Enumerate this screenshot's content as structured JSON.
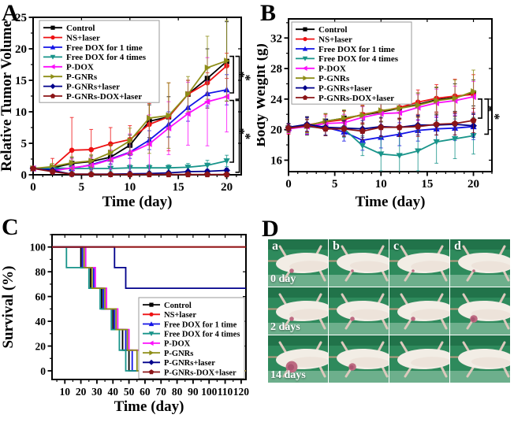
{
  "panels": {
    "a": {
      "letter": "A"
    },
    "b": {
      "letter": "B"
    },
    "c": {
      "letter": "C"
    },
    "d": {
      "letter": "D"
    }
  },
  "chart_data": [
    {
      "panel": "A",
      "type": "line",
      "xlabel": "Time (day)",
      "ylabel": "Relative Tumor Volume",
      "x": [
        0,
        2,
        4,
        6,
        8,
        10,
        12,
        14,
        16,
        18,
        20
      ],
      "xlim": [
        0,
        21.5
      ],
      "ylim": [
        0,
        25
      ],
      "xticks": [
        0,
        5,
        10,
        15,
        20
      ],
      "yticks": [
        0,
        5,
        10,
        15,
        20,
        25
      ],
      "xminor": 1,
      "yminor": 2.5,
      "star": "*",
      "series": [
        {
          "name": "Control",
          "color": "#000000",
          "marker": "square",
          "y": [
            1.0,
            1.1,
            1.8,
            2.1,
            2.8,
            4.7,
            8.5,
            9.2,
            12.8,
            15.3,
            18.0
          ],
          "err": [
            0.1,
            0.4,
            0.9,
            0.9,
            1.1,
            1.6,
            2.6,
            3.2,
            2.2,
            4.7,
            6.3
          ]
        },
        {
          "name": "NS+laser",
          "color": "#ee1113",
          "marker": "circle",
          "y": [
            1.0,
            1.2,
            3.9,
            4.0,
            4.9,
            5.6,
            8.0,
            9.2,
            12.8,
            14.6,
            17.3
          ],
          "err": [
            0.15,
            1.4,
            5.2,
            3.2,
            2.6,
            2.2,
            3.3,
            5.4,
            2.2,
            1.6,
            2.0
          ]
        },
        {
          "name": "Free DOX for 1 time",
          "color": "#1414e6",
          "marker": "triangle-up",
          "y": [
            1.0,
            0.9,
            1.0,
            1.6,
            2.5,
            3.6,
            5.5,
            8.0,
            10.7,
            12.9,
            13.5
          ],
          "err": [
            0.1,
            0.3,
            0.5,
            0.6,
            0.8,
            1.0,
            1.5,
            2.0,
            2.2,
            2.0,
            2.4
          ]
        },
        {
          "name": "Free DOX for 4 times",
          "color": "#18948a",
          "marker": "triangle-down",
          "y": [
            1.0,
            1.1,
            1.0,
            1.0,
            1.0,
            1.1,
            1.1,
            1.1,
            1.2,
            1.5,
            2.2
          ],
          "err": [
            0.1,
            0.3,
            0.4,
            0.4,
            0.4,
            0.5,
            0.5,
            0.5,
            0.6,
            0.8,
            0.9
          ]
        },
        {
          "name": "P-DOX",
          "color": "#fb0ffb",
          "marker": "triangle-left",
          "y": [
            1.0,
            0.6,
            1.1,
            1.5,
            2.4,
            3.5,
            4.9,
            7.4,
            9.7,
            11.6,
            12.4
          ],
          "err": [
            0.1,
            0.3,
            1.4,
            1.2,
            1.5,
            3.0,
            4.6,
            4.2,
            5.0,
            7.0,
            5.6
          ]
        },
        {
          "name": "P-GNRs",
          "color": "#8e8e17",
          "marker": "triangle-right",
          "y": [
            1.0,
            1.3,
            1.9,
            2.2,
            3.5,
            5.4,
            9.0,
            9.4,
            12.8,
            17.0,
            18.1
          ],
          "err": [
            0.15,
            0.5,
            1.0,
            1.0,
            1.3,
            2.0,
            5.6,
            5.2,
            2.8,
            5.0,
            6.4
          ]
        },
        {
          "name": "P-GNRs+laser",
          "color": "#00008b",
          "marker": "diamond",
          "y": [
            1.0,
            0.7,
            0.1,
            0.1,
            0.1,
            0.15,
            0.2,
            0.3,
            0.5,
            0.55,
            0.7
          ],
          "err": [
            0.1,
            0.3,
            0.1,
            0.1,
            0.1,
            0.1,
            0.15,
            0.2,
            0.25,
            0.3,
            0.35
          ]
        },
        {
          "name": "P-GNRs-DOX+laser",
          "color": "#8b1417",
          "marker": "pentagon",
          "y": [
            1.0,
            0.5,
            0.1,
            0.08,
            0.06,
            0.05,
            0.05,
            0.05,
            0.05,
            0.05,
            0.05
          ],
          "err": [
            0.1,
            0.25,
            0.08,
            0.06,
            0.05,
            0.05,
            0.05,
            0.05,
            0.05,
            0.05,
            0.05
          ]
        }
      ],
      "brackets": [
        {
          "x": 20.7,
          "y1": 18.8,
          "y2": 13.0
        },
        {
          "x": 21.3,
          "y1": 18.8,
          "y2": 12.0
        },
        {
          "x": 20.7,
          "y1": 11.8,
          "y2": 2.0
        },
        {
          "x": 21.3,
          "y1": 11.8,
          "y2": 0.4
        }
      ]
    },
    {
      "panel": "B",
      "type": "line",
      "xlabel": "Time (day)",
      "ylabel": "Body Weight (g)",
      "x": [
        0,
        2,
        4,
        6,
        8,
        10,
        12,
        14,
        16,
        18,
        20
      ],
      "xlim": [
        0,
        22
      ],
      "ylim": [
        14.5,
        34.5
      ],
      "xticks": [
        0,
        5,
        10,
        15,
        20
      ],
      "yticks": [
        16,
        20,
        24,
        28,
        32
      ],
      "xminor": 1,
      "yminor": 2,
      "star": "*",
      "series": [
        {
          "name": "Control",
          "color": "#000000",
          "marker": "square",
          "y": [
            20.2,
            20.5,
            21.1,
            21.5,
            21.9,
            22.3,
            22.8,
            23.3,
            23.9,
            24.2,
            24.8
          ],
          "err": [
            0.6,
            1.2,
            1.0,
            1.0,
            1.2,
            1.3,
            1.4,
            1.5,
            1.6,
            1.8,
            1.7
          ]
        },
        {
          "name": "NS+laser",
          "color": "#ee1113",
          "marker": "circle",
          "y": [
            20.1,
            20.6,
            21.0,
            21.3,
            22.0,
            22.4,
            22.9,
            23.6,
            24.1,
            24.4,
            24.6
          ],
          "err": [
            0.7,
            1.0,
            1.0,
            1.1,
            1.2,
            1.3,
            1.5,
            1.6,
            1.8,
            2.2,
            2.6
          ]
        },
        {
          "name": "Free DOX for 1 time",
          "color": "#1414e6",
          "marker": "triangle-up",
          "y": [
            20.2,
            20.5,
            20.3,
            19.7,
            18.6,
            19.0,
            19.4,
            19.9,
            20.1,
            20.2,
            20.4
          ],
          "err": [
            0.6,
            1.1,
            1.1,
            1.2,
            1.3,
            1.4,
            1.5,
            1.4,
            1.5,
            1.6,
            1.7
          ]
        },
        {
          "name": "Free DOX for 4 times",
          "color": "#18948a",
          "marker": "triangle-down",
          "y": [
            20.2,
            20.4,
            20.2,
            20.1,
            17.9,
            16.8,
            16.6,
            17.2,
            18.4,
            18.8,
            19.2
          ],
          "err": [
            0.6,
            0.9,
            1.0,
            1.1,
            1.3,
            2.2,
            3.0,
            2.6,
            2.8,
            2.6,
            2.4
          ]
        },
        {
          "name": "P-DOX",
          "color": "#fb0ffb",
          "marker": "triangle-left",
          "y": [
            20.1,
            20.4,
            20.8,
            20.9,
            21.6,
            22.1,
            22.2,
            22.9,
            23.5,
            23.8,
            24.3
          ],
          "err": [
            0.6,
            1.0,
            1.0,
            1.1,
            1.4,
            1.5,
            1.6,
            1.7,
            1.8,
            1.9,
            2.0
          ]
        },
        {
          "name": "P-GNRs",
          "color": "#8e8e17",
          "marker": "triangle-right",
          "y": [
            20.2,
            20.5,
            21.1,
            21.5,
            21.9,
            22.5,
            22.8,
            23.2,
            23.8,
            24.1,
            25.0
          ],
          "err": [
            0.6,
            0.9,
            1.0,
            1.1,
            1.2,
            1.4,
            1.5,
            1.6,
            1.8,
            2.4,
            2.8
          ]
        },
        {
          "name": "P-GNRs+laser",
          "color": "#00008b",
          "marker": "diamond",
          "y": [
            20.3,
            20.7,
            20.3,
            20.2,
            20.1,
            20.4,
            20.3,
            20.6,
            20.6,
            20.7,
            20.5
          ],
          "err": [
            0.5,
            0.9,
            1.0,
            1.0,
            1.1,
            1.2,
            1.2,
            1.3,
            1.3,
            1.4,
            1.5
          ]
        },
        {
          "name": "P-GNRs-DOX+laser",
          "color": "#8b1417",
          "marker": "pentagon",
          "y": [
            20.2,
            20.5,
            20.1,
            20.1,
            19.8,
            20.3,
            20.3,
            20.4,
            20.7,
            20.8,
            21.2
          ],
          "err": [
            0.5,
            0.8,
            0.9,
            1.0,
            1.1,
            1.2,
            1.2,
            1.3,
            1.4,
            1.5,
            1.6
          ]
        }
      ],
      "brackets": [
        {
          "x": 20.9,
          "y1": 24.0,
          "y2": 21.5
        },
        {
          "x": 21.6,
          "y1": 24.0,
          "y2": 19.4
        }
      ]
    },
    {
      "panel": "C",
      "type": "step",
      "xlabel": "Time (day)",
      "ylabel": "Survival (%)",
      "xlim": [
        2,
        123
      ],
      "ylim": [
        -7,
        110
      ],
      "xticks": [
        10,
        20,
        30,
        40,
        50,
        60,
        70,
        80,
        90,
        100,
        110,
        120
      ],
      "yticks": [
        0,
        20,
        40,
        60,
        80,
        100
      ],
      "xminor": 5,
      "yminor": 10,
      "start_level": 100,
      "drop_size": 16.667,
      "series": [
        {
          "name": "Control",
          "color": "#000000",
          "marker": "square",
          "drops": [
            20,
            26,
            33,
            40,
            46,
            50
          ]
        },
        {
          "name": "NS+laser",
          "color": "#ee1113",
          "marker": "circle",
          "drops": []
        },
        {
          "name": "Free DOX for 1 time",
          "color": "#1414e6",
          "marker": "triangle-up",
          "drops": [
            21,
            28,
            34,
            41,
            48,
            52
          ]
        },
        {
          "name": "Free DOX for 4 times",
          "color": "#18948a",
          "marker": "triangle-down",
          "drops": [
            11,
            25,
            32,
            39,
            44,
            48
          ]
        },
        {
          "name": "P-DOX",
          "color": "#fb0ffb",
          "marker": "triangle-left",
          "drops": [
            23,
            29,
            36,
            43,
            50,
            57
          ]
        },
        {
          "name": "P-GNRs",
          "color": "#8e8e17",
          "marker": "triangle-right",
          "drops": [
            22,
            27,
            35,
            42,
            49,
            55
          ]
        },
        {
          "name": "P-GNRs+laser",
          "color": "#00008b",
          "marker": "diamond",
          "drops": [
            41,
            48
          ]
        },
        {
          "name": "P-GNRs-DOX+laser",
          "color": "#8b1417",
          "marker": "pentagon",
          "drops": []
        }
      ]
    }
  ],
  "panel_d": {
    "columns": [
      "a",
      "b",
      "c",
      "d"
    ],
    "rows": [
      {
        "label": "0 day",
        "tumors": [
          "small",
          "tiny",
          "tiny",
          "tiny"
        ]
      },
      {
        "label": "2 days",
        "tumors": [
          "small",
          "small",
          "small",
          "medium"
        ]
      },
      {
        "label": "14 days",
        "tumors": [
          "large",
          "medium",
          "none",
          "none"
        ]
      }
    ],
    "colors": {
      "bg": "#2e8a5c",
      "bg_dark": "#1f6f47",
      "bg_light": "#8fc3a6",
      "tail": "#c79d85",
      "mouse": "#f2ede5",
      "mouse_shade": "#e9dcd2",
      "tumor": "#bd6b82",
      "tumor_dark": "#a5506d"
    }
  }
}
